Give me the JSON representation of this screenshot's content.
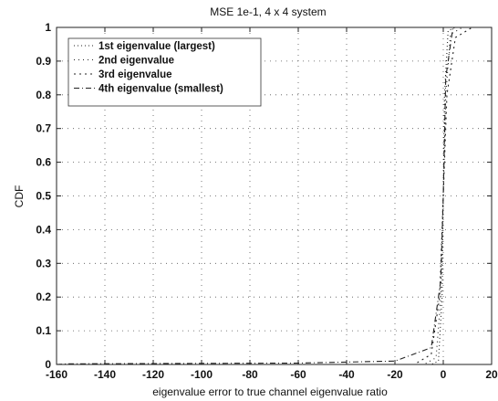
{
  "chart_data": {
    "type": "line",
    "title": "MSE 1e-1, 4 x 4 system",
    "xlabel": "eigenvalue error to true channel eigenvalue ratio",
    "ylabel": "CDF",
    "xlim": [
      -160,
      20
    ],
    "ylim": [
      0,
      1
    ],
    "xticks": [
      -160,
      -140,
      -120,
      -100,
      -80,
      -60,
      -40,
      -20,
      0,
      20
    ],
    "yticks": [
      0,
      0.1,
      0.2,
      0.3,
      0.4,
      0.5,
      0.6,
      0.7,
      0.8,
      0.9,
      1
    ],
    "grid": true,
    "legend_position": "top-left",
    "series": [
      {
        "name": "1st eigenvalue (largest)",
        "dash": "1 3",
        "x": [
          -160,
          -5,
          -2,
          -0.5,
          0,
          0.5,
          2,
          5,
          20
        ],
        "y": [
          0,
          0,
          0.01,
          0.2,
          0.5,
          0.8,
          0.99,
          1,
          1
        ]
      },
      {
        "name": "2nd eigenvalue",
        "dash": "1 4",
        "x": [
          -160,
          -8,
          -3,
          -1,
          0,
          1,
          3,
          8,
          20
        ],
        "y": [
          0,
          0,
          0.02,
          0.2,
          0.5,
          0.8,
          0.98,
          1,
          1
        ]
      },
      {
        "name": "3rd eigenvalue",
        "dash": "2 4",
        "x": [
          -160,
          -12,
          -5,
          -1.5,
          0,
          1.5,
          5,
          12,
          20
        ],
        "y": [
          0,
          0,
          0.03,
          0.2,
          0.5,
          0.8,
          0.97,
          1,
          1
        ]
      },
      {
        "name": "4th eigenvalue (smallest)",
        "dash": "6 3 1 3",
        "x": [
          -160,
          -155,
          -60,
          -20,
          -5,
          -1,
          0,
          1,
          4,
          20
        ],
        "y": [
          0,
          0.002,
          0.004,
          0.01,
          0.05,
          0.25,
          0.5,
          0.85,
          1,
          1
        ]
      }
    ]
  }
}
